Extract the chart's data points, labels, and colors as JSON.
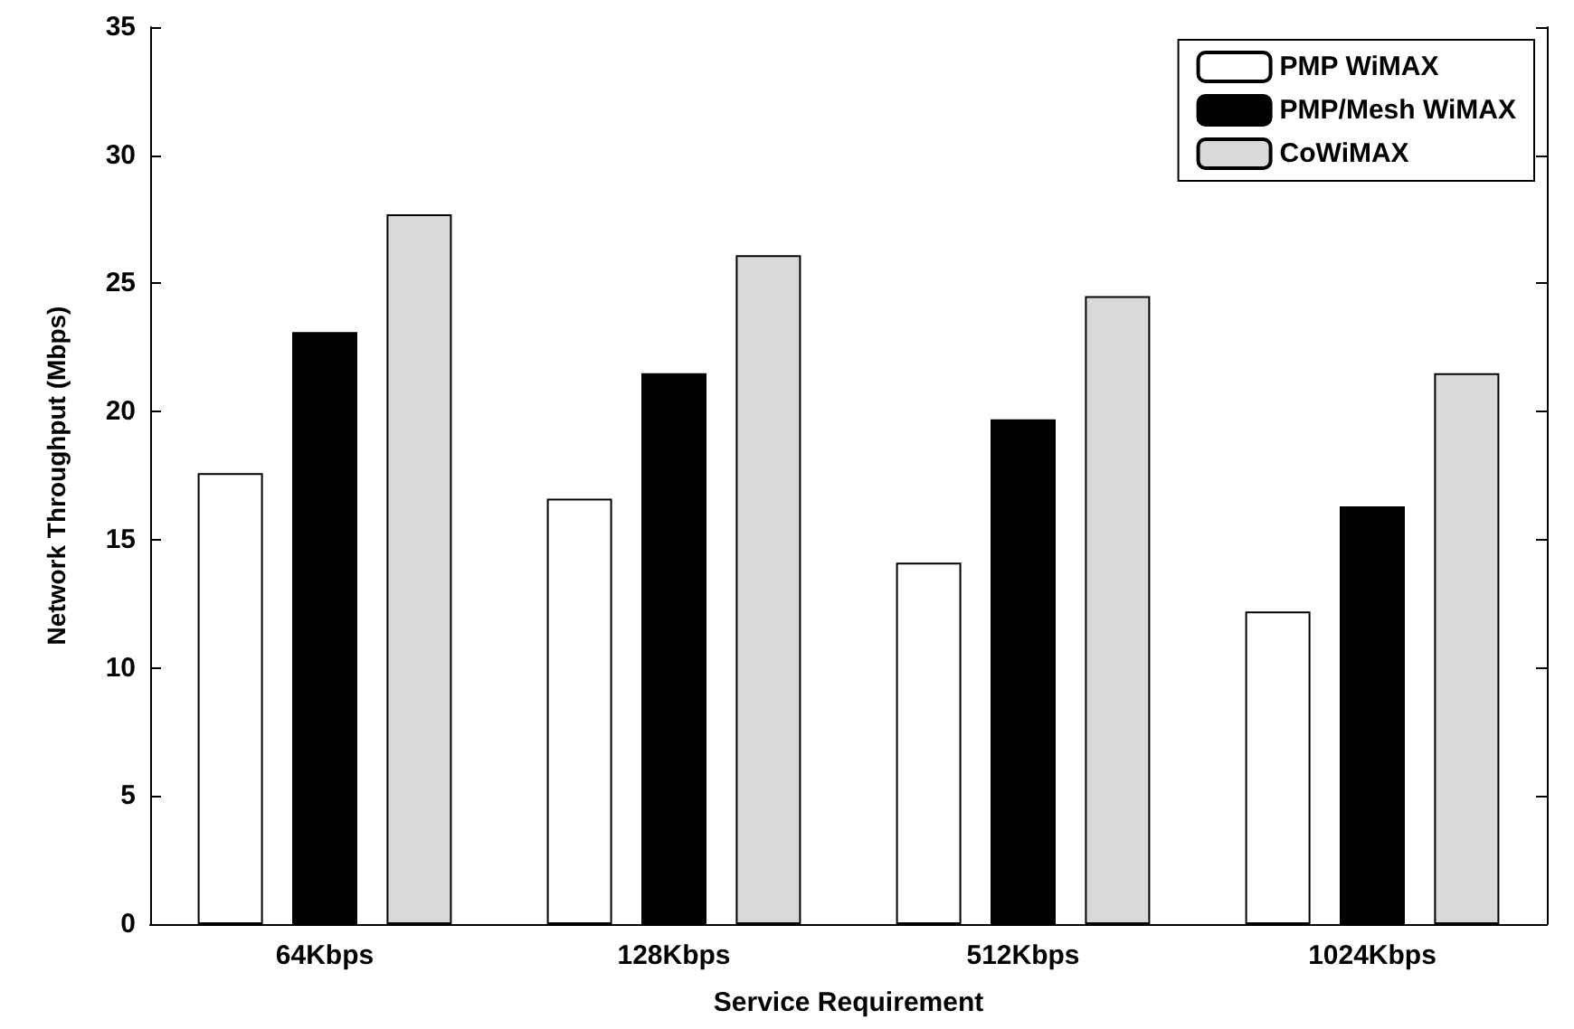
{
  "chart_data": {
    "type": "bar",
    "xlabel": "Service Requirement",
    "ylabel": "Network Throughput (Mbps)",
    "categories": [
      "64Kbps",
      "128Kbps",
      "512Kbps",
      "1024Kbps"
    ],
    "series": [
      {
        "name": "PMP WiMAX",
        "color": "#ffffff",
        "values": [
          17.6,
          16.6,
          14.1,
          12.2
        ]
      },
      {
        "name": "PMP/Mesh WiMAX",
        "color": "#000000",
        "values": [
          23.1,
          21.5,
          19.7,
          16.3
        ]
      },
      {
        "name": "CoWiMAX",
        "color": "#d9d9d9",
        "values": [
          27.7,
          26.1,
          24.5,
          21.5
        ]
      }
    ],
    "ylim": [
      0,
      35
    ],
    "yticks": [
      0,
      5,
      10,
      15,
      20,
      25,
      30,
      35
    ],
    "grid": false,
    "legend": "top right"
  }
}
